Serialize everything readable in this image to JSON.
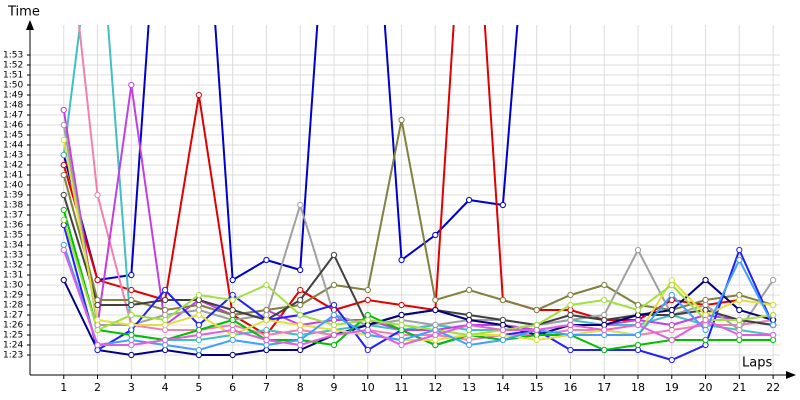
{
  "chart_data": {
    "type": "line",
    "xlabel": "Laps",
    "ylabel": "Time",
    "x": [
      1,
      2,
      3,
      4,
      5,
      6,
      7,
      8,
      9,
      10,
      11,
      12,
      13,
      14,
      15,
      16,
      17,
      18,
      19,
      20,
      21,
      22
    ],
    "xlim": [
      0,
      22.5
    ],
    "xticks": [
      1,
      2,
      3,
      4,
      5,
      6,
      7,
      8,
      9,
      10,
      11,
      12,
      13,
      14,
      15,
      16,
      17,
      18,
      19,
      20,
      21,
      22
    ],
    "ylim": [
      81,
      116
    ],
    "yticks": [
      {
        "value": 83,
        "label": "1:23"
      },
      {
        "value": 84,
        "label": "1:24"
      },
      {
        "value": 85,
        "label": "1:25"
      },
      {
        "value": 86,
        "label": "1:26"
      },
      {
        "value": 87,
        "label": "1:27"
      },
      {
        "value": 88,
        "label": "1:28"
      },
      {
        "value": 89,
        "label": "1:29"
      },
      {
        "value": 90,
        "label": "1:30"
      },
      {
        "value": 91,
        "label": "1:31"
      },
      {
        "value": 92,
        "label": "1:32"
      },
      {
        "value": 93,
        "label": "1:33"
      },
      {
        "value": 94,
        "label": "1:34"
      },
      {
        "value": 95,
        "label": "1:35"
      },
      {
        "value": 96,
        "label": "1:36"
      },
      {
        "value": 97,
        "label": "1:37"
      },
      {
        "value": 98,
        "label": "1:38"
      },
      {
        "value": 99,
        "label": "1:39"
      },
      {
        "value": 100,
        "label": "1:40"
      },
      {
        "value": 101,
        "label": "1:41"
      },
      {
        "value": 102,
        "label": "1:42"
      },
      {
        "value": 103,
        "label": "1:43"
      },
      {
        "value": 104,
        "label": "1:44"
      },
      {
        "value": 105,
        "label": "1:45"
      },
      {
        "value": 106,
        "label": "1:46"
      },
      {
        "value": 107,
        "label": "1:47"
      },
      {
        "value": 108,
        "label": "1:48"
      },
      {
        "value": 109,
        "label": "1:49"
      },
      {
        "value": 110,
        "label": "1:50"
      },
      {
        "value": 111,
        "label": "1:51"
      },
      {
        "value": 112,
        "label": "1:52"
      },
      {
        "value": 113,
        "label": "1:53"
      }
    ],
    "grid": true,
    "series": [
      {
        "color": "#0000cc",
        "values": [
          103,
          90.5,
          91,
          140,
          140,
          90.5,
          92.5,
          91.5,
          140,
          140,
          92.5,
          95,
          98.5,
          98,
          140,
          null,
          null,
          null,
          null,
          null,
          null,
          null
        ]
      },
      {
        "color": "#e00000",
        "values": [
          102,
          90.5,
          89.5,
          88.5,
          109,
          87,
          85,
          89.5,
          87.5,
          88.5,
          88,
          87.5,
          140,
          88.5,
          87.5,
          87.5,
          86.5,
          86.5,
          88.5,
          88,
          88.5,
          null
        ]
      },
      {
        "color": "#40c0c0",
        "values": [
          103,
          130,
          85,
          84.5,
          84.5,
          85,
          85.5,
          85,
          85.5,
          86,
          85.5,
          86,
          85.5,
          85.5,
          86,
          86.5,
          86,
          86,
          87,
          86,
          85.5,
          85
        ]
      },
      {
        "color": "#f080b0",
        "values": [
          130,
          99,
          86,
          85.5,
          85.5,
          86,
          85,
          85.5,
          85,
          85.5,
          85,
          85,
          84.5,
          85,
          85,
          85.5,
          85.5,
          85,
          85.5,
          86,
          86,
          86.5
        ]
      },
      {
        "color": "#c040e0",
        "values": [
          107.5,
          86,
          110,
          86,
          88.5,
          87,
          87.5,
          86,
          86.5,
          86.5,
          85.5,
          85.5,
          86,
          86,
          85.5,
          86,
          86,
          86.5,
          86,
          87,
          86.5,
          86
        ]
      },
      {
        "color": "#808040",
        "values": [
          101,
          88.5,
          88.5,
          87.5,
          88,
          87,
          87.5,
          88,
          90,
          89.5,
          106.5,
          88.5,
          89.5,
          88.5,
          87.5,
          89,
          90,
          88,
          87.5,
          88.5,
          89,
          88
        ]
      },
      {
        "color": "#a0a0a0",
        "values": [
          106,
          86,
          86,
          87,
          87.5,
          86.5,
          87,
          98,
          87,
          86,
          86.5,
          86,
          86.5,
          86.5,
          86,
          86.5,
          87,
          93.5,
          87,
          88,
          85.5,
          90.5
        ]
      },
      {
        "color": "#404040",
        "values": [
          99,
          88,
          88,
          88.5,
          88.5,
          87.5,
          86.5,
          88.5,
          93,
          86,
          87,
          87.5,
          87,
          86.5,
          86,
          87,
          86.5,
          87,
          87,
          87.5,
          86.5,
          86
        ]
      },
      {
        "color": "#000080",
        "values": [
          90.5,
          83.5,
          83,
          83.5,
          83,
          83,
          83.5,
          83.5,
          85,
          86,
          87,
          87.5,
          86.5,
          86,
          85,
          86,
          86,
          87,
          87.5,
          90.5,
          87.5,
          86.5
        ]
      },
      {
        "color": "#2020ff",
        "values": [
          96,
          83.5,
          85.5,
          89.5,
          86,
          89,
          86.5,
          87,
          88,
          83.5,
          85.5,
          84,
          85,
          85,
          85.5,
          83.5,
          83.5,
          83.5,
          82.5,
          84,
          93.5,
          86
        ]
      },
      {
        "color": "#00c000",
        "values": [
          97.5,
          85.5,
          85,
          84.5,
          85.5,
          86.5,
          84.5,
          84.5,
          84,
          87,
          85.5,
          84,
          85,
          84.5,
          85,
          85,
          83.5,
          84,
          84.5,
          84.5,
          84.5,
          84.5
        ]
      },
      {
        "color": "#e0e040",
        "values": [
          104.5,
          86.5,
          86,
          86,
          87,
          85,
          86.5,
          86,
          85.5,
          85,
          84.5,
          84.5,
          85,
          85,
          84.5,
          85,
          85.5,
          85,
          90.5,
          87,
          88.5,
          88
        ]
      },
      {
        "color": "#a0e040",
        "values": [
          96.5,
          85.5,
          87,
          86.5,
          89,
          88.5,
          90,
          87,
          86,
          86.5,
          86,
          85.5,
          85,
          85.5,
          86,
          88,
          88.5,
          87.5,
          90,
          86.5,
          86.5,
          87
        ]
      },
      {
        "color": "#40a0ff",
        "values": [
          94,
          84,
          84.5,
          84,
          83.5,
          84.5,
          84,
          84.5,
          87,
          85,
          84.5,
          85.5,
          84,
          84.5,
          85.5,
          85,
          85,
          85,
          89,
          85.5,
          92.5,
          86
        ]
      },
      {
        "color": "#e060e0",
        "values": [
          93.5,
          84,
          84,
          84.5,
          85,
          85.5,
          84.5,
          84,
          85,
          85.5,
          84,
          85,
          86,
          85.5,
          85.5,
          86,
          85.5,
          86,
          84.5,
          86.5,
          85,
          85
        ]
      }
    ]
  }
}
